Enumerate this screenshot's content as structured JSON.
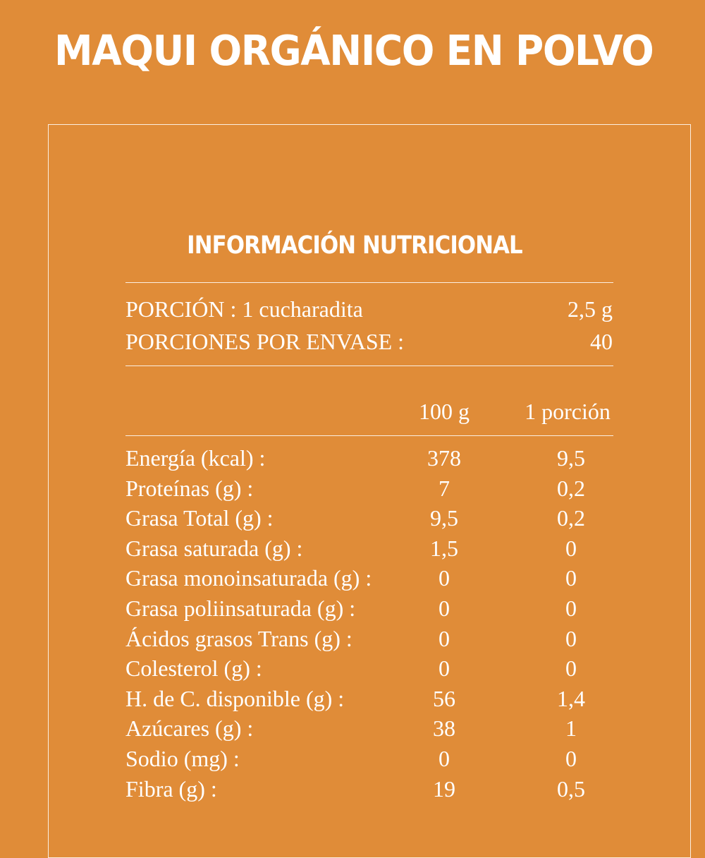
{
  "title": "MAQUI ORGÁNICO EN POLVO",
  "panel": {
    "heading": "INFORMACIÓN NUTRICIONAL",
    "portion_label": "PORCIÓN : 1 cucharadita",
    "portion_value": "2,5 g",
    "servings_label": "PORCIONES POR ENVASE :",
    "servings_value": "40",
    "col_100g": "100  g",
    "col_portion": "1 porción",
    "rows": [
      {
        "label": "Energía (kcal) :",
        "per100": "378",
        "perPortion": "9,5"
      },
      {
        "label": "Proteínas (g) :",
        "per100": "7",
        "perPortion": "0,2"
      },
      {
        "label": "Grasa Total (g) :",
        "per100": "9,5",
        "perPortion": "0,2"
      },
      {
        "label": "Grasa saturada (g) :",
        "per100": "1,5",
        "perPortion": "0"
      },
      {
        "label": "Grasa monoinsaturada (g) :",
        "per100": "0",
        "perPortion": "0"
      },
      {
        "label": "Grasa poliinsaturada (g) :",
        "per100": "0",
        "perPortion": "0"
      },
      {
        "label": "Ácidos grasos Trans (g) :",
        "per100": "0",
        "perPortion": "0"
      },
      {
        "label": "Colesterol (g) :",
        "per100": "0",
        "perPortion": "0"
      },
      {
        "label": "H. de C. disponible (g) :",
        "per100": "56",
        "perPortion": "1,4"
      },
      {
        "label": "Azúcares (g) :",
        "per100": "38",
        "perPortion": "1"
      },
      {
        "label": "Sodio (mg) :",
        "per100": "0",
        "perPortion": "0"
      },
      {
        "label": "Fibra (g) :",
        "per100": "19",
        "perPortion": "0,5"
      }
    ]
  }
}
